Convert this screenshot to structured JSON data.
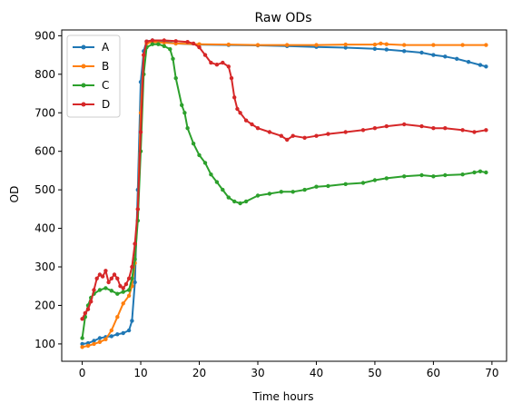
{
  "chart_data": {
    "type": "line",
    "title": "Raw ODs",
    "xlabel": "Time hours",
    "ylabel": "OD",
    "xlim": [
      -3.5,
      72.5
    ],
    "ylim": [
      55,
      915
    ],
    "xticks": [
      0,
      10,
      20,
      30,
      40,
      50,
      60,
      70
    ],
    "yticks": [
      100,
      200,
      300,
      400,
      500,
      600,
      700,
      800,
      900
    ],
    "grid": false,
    "legend_position": "top-left",
    "series": [
      {
        "name": "A",
        "color": "#1f77b4",
        "x": [
          0,
          1,
          2,
          3,
          4,
          5,
          6,
          7,
          8,
          8.5,
          9,
          9.5,
          10,
          10.5,
          11,
          12,
          14,
          16,
          20,
          25,
          30,
          35,
          40,
          45,
          50,
          52,
          55,
          58,
          60,
          62,
          64,
          66,
          68,
          69
        ],
        "y": [
          100,
          102,
          108,
          115,
          118,
          120,
          125,
          128,
          135,
          160,
          260,
          500,
          780,
          860,
          885,
          888,
          885,
          880,
          877,
          876,
          875,
          873,
          871,
          869,
          866,
          864,
          860,
          856,
          850,
          846,
          840,
          832,
          824,
          820
        ]
      },
      {
        "name": "B",
        "color": "#ff7f0e",
        "x": [
          0,
          1,
          2,
          3,
          4,
          5,
          6,
          7,
          8,
          8.5,
          9,
          9.5,
          10,
          10.5,
          11,
          12,
          14,
          16,
          20,
          25,
          30,
          35,
          40,
          45,
          50,
          51,
          52,
          55,
          60,
          65,
          69
        ],
        "y": [
          92,
          95,
          100,
          105,
          112,
          135,
          170,
          205,
          225,
          250,
          310,
          450,
          700,
          850,
          880,
          884,
          882,
          880,
          878,
          877,
          876,
          876,
          876,
          877,
          877,
          880,
          878,
          876,
          876,
          876,
          876
        ]
      },
      {
        "name": "C",
        "color": "#2ca02c",
        "x": [
          0,
          0.5,
          1,
          1.5,
          2,
          3,
          4,
          5,
          6,
          7,
          8,
          8.5,
          9,
          9.5,
          10,
          10.5,
          11,
          12,
          13,
          14,
          15,
          15.5,
          16,
          17,
          17.5,
          18,
          19,
          20,
          21,
          22,
          23,
          24,
          25,
          26,
          27,
          28,
          30,
          32,
          34,
          36,
          38,
          40,
          42,
          45,
          48,
          50,
          52,
          55,
          58,
          60,
          62,
          65,
          67,
          68,
          69
        ],
        "y": [
          115,
          170,
          200,
          220,
          230,
          240,
          245,
          238,
          230,
          235,
          240,
          270,
          320,
          420,
          600,
          800,
          870,
          878,
          878,
          873,
          865,
          840,
          790,
          720,
          700,
          660,
          620,
          590,
          570,
          540,
          520,
          500,
          480,
          470,
          465,
          470,
          485,
          490,
          495,
          495,
          500,
          508,
          510,
          515,
          518,
          525,
          530,
          535,
          538,
          535,
          538,
          540,
          545,
          548,
          545
        ]
      },
      {
        "name": "D",
        "color": "#d62728",
        "x": [
          0,
          0.5,
          1,
          1.5,
          2,
          2.5,
          3,
          3.5,
          4,
          4.5,
          5,
          5.5,
          6,
          6.5,
          7,
          7.5,
          8,
          8.5,
          9,
          9.5,
          10,
          10.5,
          11,
          12,
          14,
          16,
          18,
          19,
          20,
          21,
          22,
          23,
          24,
          25,
          25.5,
          26,
          26.5,
          27,
          28,
          29,
          30,
          32,
          34,
          35,
          36,
          38,
          40,
          42,
          45,
          48,
          50,
          52,
          55,
          58,
          60,
          62,
          65,
          67,
          69
        ],
        "y": [
          165,
          180,
          190,
          210,
          240,
          270,
          280,
          275,
          290,
          260,
          270,
          280,
          270,
          250,
          245,
          255,
          270,
          300,
          360,
          450,
          650,
          850,
          885,
          888,
          888,
          886,
          884,
          880,
          870,
          850,
          830,
          825,
          830,
          820,
          790,
          740,
          710,
          700,
          680,
          670,
          660,
          650,
          640,
          630,
          640,
          635,
          640,
          645,
          650,
          655,
          660,
          665,
          670,
          665,
          660,
          660,
          655,
          650,
          655
        ]
      }
    ]
  }
}
